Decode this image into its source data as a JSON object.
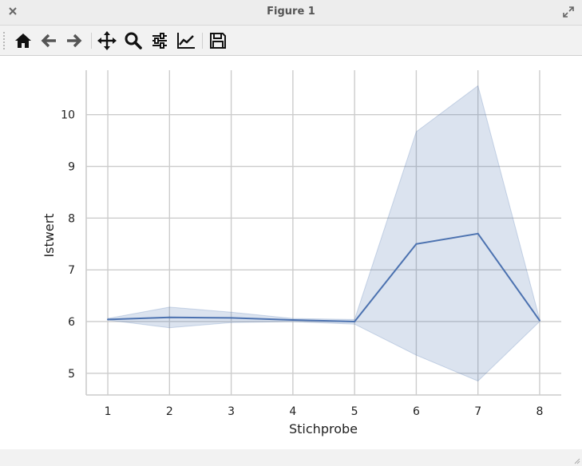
{
  "window": {
    "title": "Figure 1"
  },
  "toolbar": {
    "buttons": [
      {
        "name": "home-button",
        "icon": "home-icon"
      },
      {
        "name": "back-button",
        "icon": "arrow-left-icon"
      },
      {
        "name": "forward-button",
        "icon": "arrow-right-icon"
      },
      {
        "name": "pan-button",
        "icon": "move-icon"
      },
      {
        "name": "zoom-button",
        "icon": "magnifier-icon"
      },
      {
        "name": "configure-subplots-button",
        "icon": "sliders-icon"
      },
      {
        "name": "edit-axes-button",
        "icon": "line-chart-icon"
      },
      {
        "name": "save-button",
        "icon": "floppy-disk-icon"
      }
    ]
  },
  "colors": {
    "line": "#4c72b0",
    "band": "#4c72b0",
    "grid": "#cccccc",
    "axis": "#cccccc"
  },
  "chart_data": {
    "type": "line",
    "xlabel": "Stichprobe",
    "ylabel": "Istwert",
    "x": [
      1,
      2,
      3,
      4,
      5,
      6,
      7,
      8
    ],
    "series": [
      {
        "values": [
          6.04,
          6.08,
          6.07,
          6.03,
          6.0,
          7.5,
          7.7,
          6.02
        ],
        "ci_lower": [
          6.03,
          5.88,
          5.98,
          6.0,
          5.95,
          5.35,
          4.85,
          6.0
        ],
        "ci_upper": [
          6.06,
          6.28,
          6.18,
          6.06,
          6.04,
          9.67,
          10.56,
          6.04
        ]
      }
    ],
    "xticks": [
      "1",
      "2",
      "3",
      "4",
      "5",
      "6",
      "7",
      "8"
    ],
    "yticks": [
      "5",
      "6",
      "7",
      "8",
      "9",
      "10"
    ],
    "xlim": [
      0.65,
      8.35
    ],
    "ylim": [
      4.58,
      10.86
    ],
    "grid": true
  }
}
